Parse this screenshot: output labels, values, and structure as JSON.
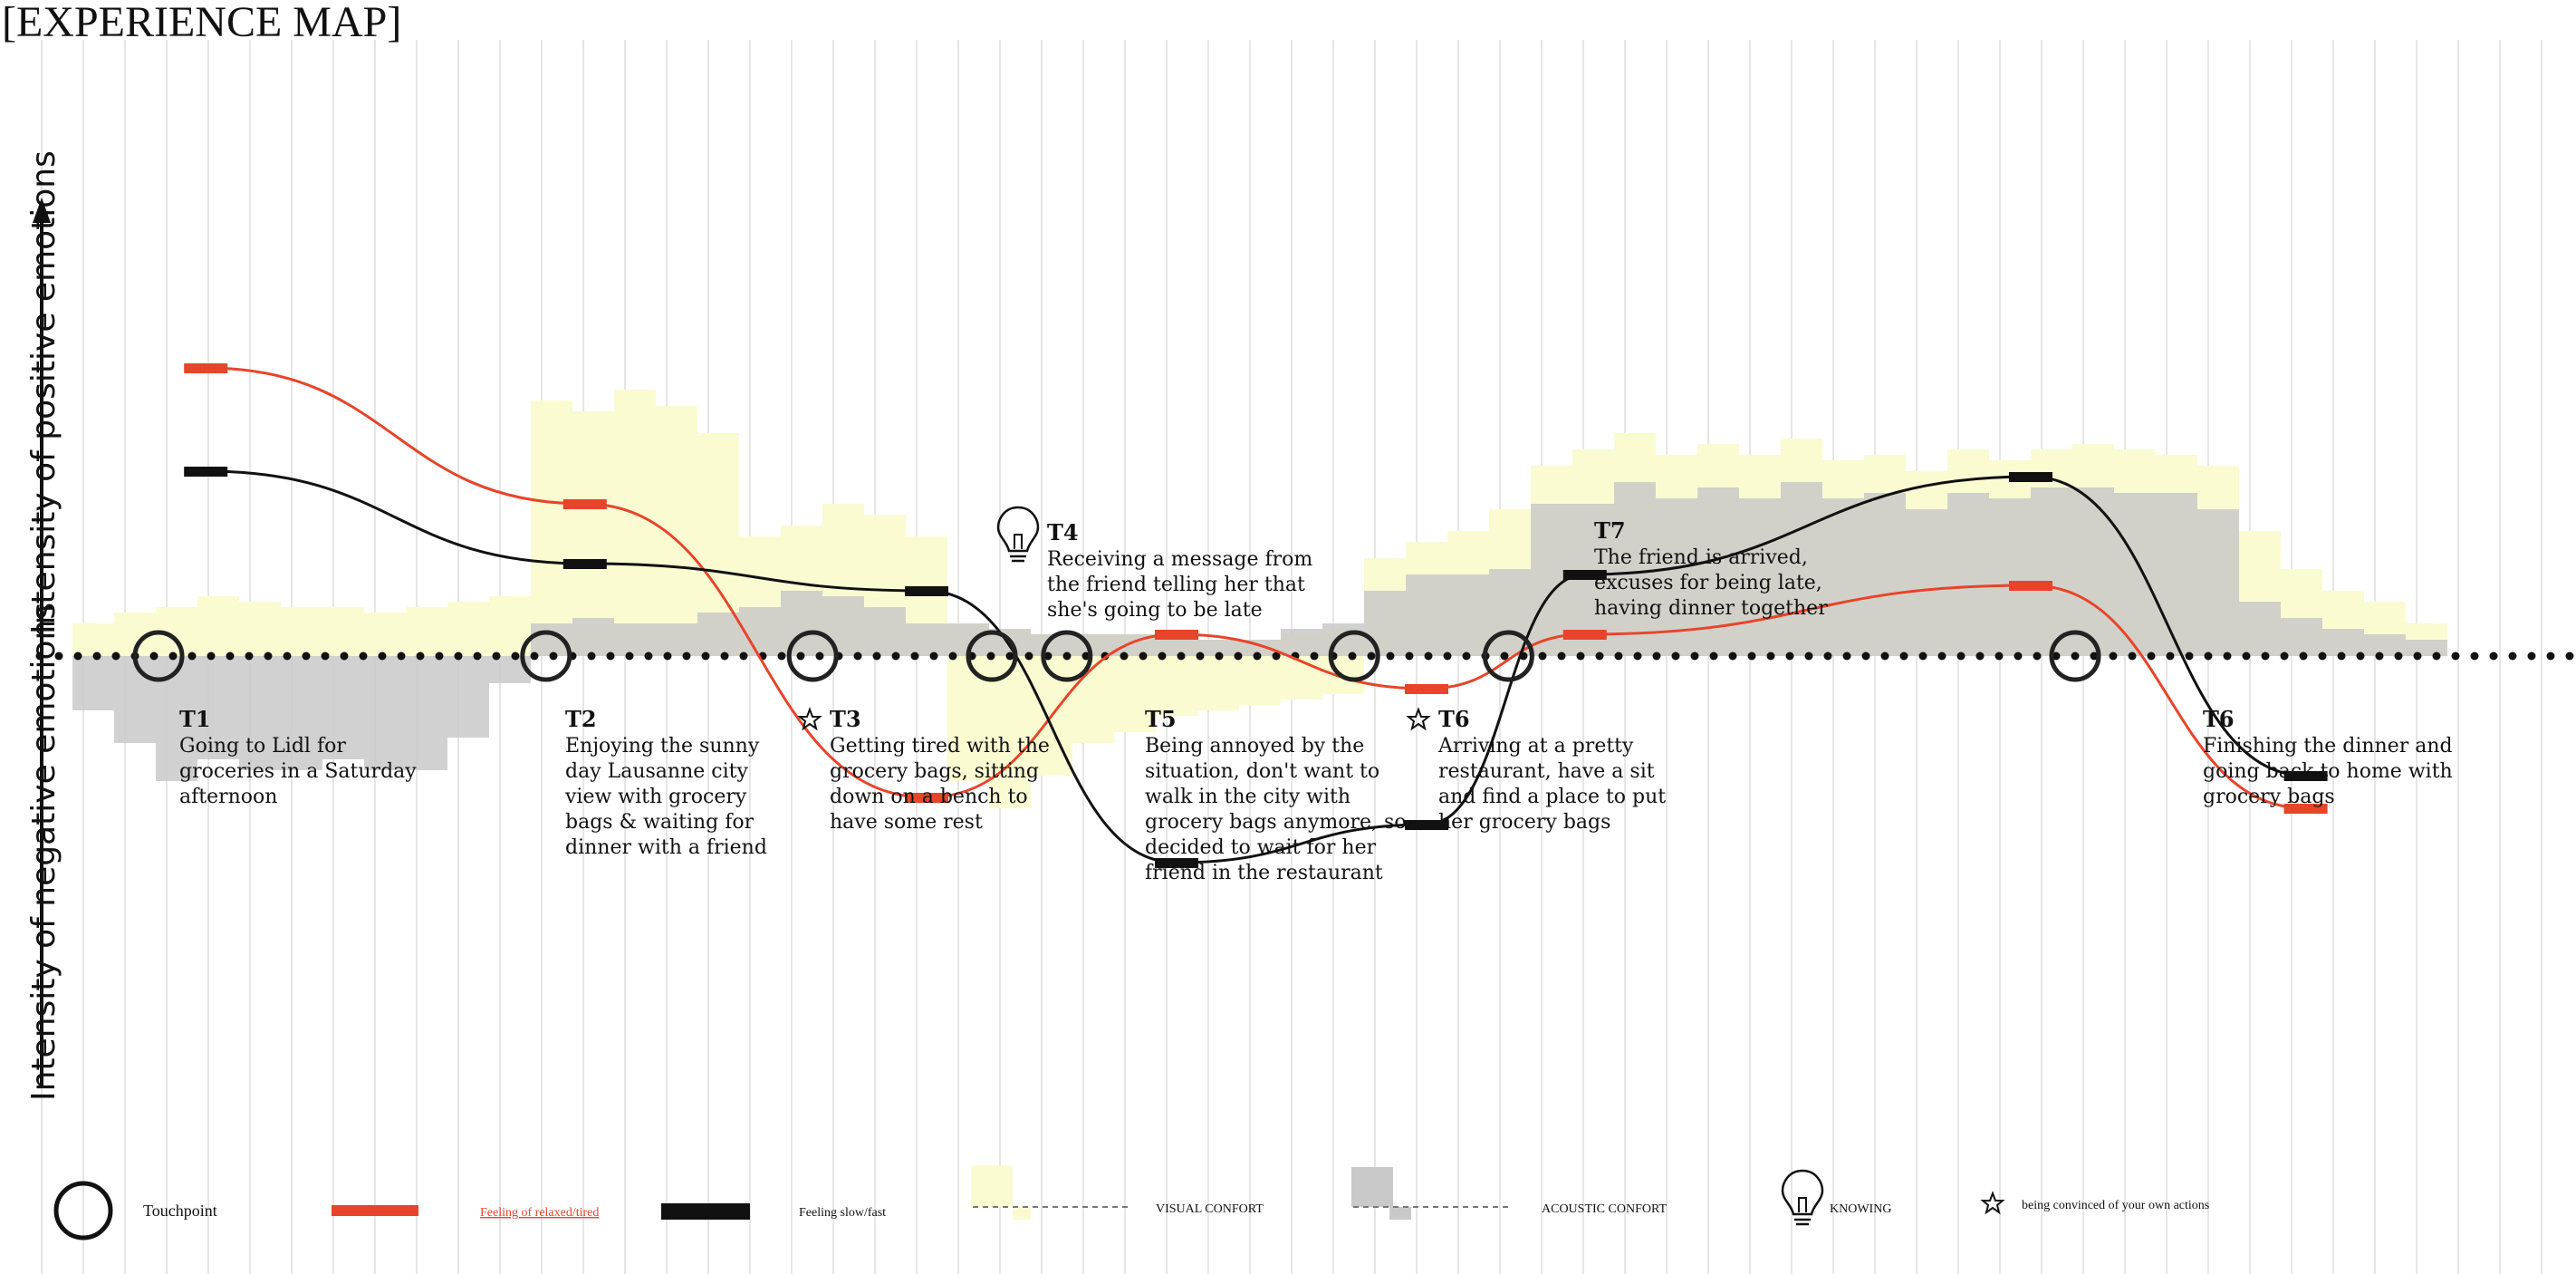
{
  "title": "[EXPERIENCE MAP]",
  "axis": {
    "positive_label": "Intensity of positive emotions",
    "negative_label": "Intensity of negative emotions"
  },
  "colors": {
    "relaxed_line": "#e8442a",
    "speed_line": "#111111",
    "visual_comfort": "#fbfbd2",
    "acoustic_comfort": "#c9c9c9",
    "grid": "#e6e6e6",
    "touchpoint_ring": "#222222"
  },
  "chart_data": {
    "type": "line",
    "description_note": "",
    "x_columns": 57,
    "ylim": [
      -6,
      6
    ],
    "visual_comfort": [
      0.6,
      0.8,
      0.9,
      1.1,
      1.0,
      0.9,
      0.9,
      0.8,
      0.9,
      1.0,
      1.1,
      4.7,
      4.5,
      4.9,
      4.6,
      4.1,
      2.2,
      2.4,
      2.8,
      2.6,
      2.2,
      0.6,
      0.5,
      0.4,
      0.4,
      0.4,
      0.3,
      0.3,
      0.3,
      0.4,
      0.5,
      1.8,
      2.1,
      2.3,
      2.7,
      3.5,
      3.8,
      4.1,
      3.7,
      3.9,
      3.7,
      4.0,
      3.6,
      3.7,
      3.4,
      3.8,
      3.6,
      3.8,
      3.9,
      3.8,
      3.7,
      3.5,
      2.3,
      1.6,
      1.2,
      1.0,
      0.6
    ],
    "visual_comfort_neg": [
      0,
      0,
      0,
      0,
      0,
      0,
      0,
      0,
      0,
      0,
      0,
      0,
      0,
      0,
      0,
      0,
      0,
      0,
      0,
      0,
      0,
      -2.3,
      -2.8,
      -2.2,
      -1.6,
      -1.4,
      -1.1,
      -1.0,
      -0.9,
      -0.8,
      -0.7,
      0,
      0,
      0,
      0,
      0,
      0,
      0,
      0,
      0,
      0,
      0,
      0,
      0,
      0,
      0,
      0,
      0,
      0,
      0,
      0,
      0,
      0,
      0,
      0,
      0,
      0
    ],
    "acoustic_comfort": [
      -1.0,
      -1.6,
      -2.3,
      -1.9,
      -2.1,
      -2.1,
      -1.9,
      -2.1,
      -2.1,
      -1.5,
      -0.5,
      0.6,
      0.7,
      0.6,
      0.6,
      0.8,
      0.9,
      1.2,
      1.1,
      0.9,
      0.6,
      0.6,
      0.5,
      0.4,
      0.4,
      0.4,
      0.3,
      0.3,
      0.3,
      0.5,
      0.6,
      1.2,
      1.5,
      1.5,
      1.6,
      2.8,
      2.8,
      3.2,
      2.9,
      3.1,
      2.9,
      3.2,
      2.9,
      3.0,
      2.7,
      3.0,
      2.9,
      3.1,
      3.1,
      3.0,
      3.0,
      2.7,
      1.0,
      0.7,
      0.5,
      0.4,
      0.3
    ],
    "touchpoints": [
      {
        "id": "T1",
        "x": 2.5,
        "text": [
          "Going to Lidl for",
          "groceries in a Saturday",
          "afternoon"
        ],
        "icon": ""
      },
      {
        "id": "T2",
        "x": 11.8,
        "text": [
          "Enjoying the sunny",
          "day Lausanne city",
          "view with grocery",
          "bags & waiting for",
          "dinner with a friend"
        ],
        "icon": ""
      },
      {
        "id": "T3",
        "x": 18.2,
        "text": [
          "Getting tired with the",
          "grocery bags, sitting",
          "down on a bench to",
          "have some rest"
        ],
        "icon": "star"
      },
      {
        "id": "T4",
        "x": 22.5,
        "text": [
          "Receiving a message from",
          "the friend telling her that",
          "she's going to be late"
        ],
        "icon": "bulb",
        "above": true
      },
      {
        "id": "T5",
        "x": 24.3,
        "text": [
          "Being annoyed by the",
          "situation, don't want to",
          "walk in the city with",
          "grocery bags anymore, so",
          "decided to wait for her",
          "friend in the restaurant"
        ],
        "icon": ""
      },
      {
        "id": "T6",
        "x": 31.2,
        "text": [
          "Arriving at a pretty",
          "restaurant, have a sit",
          "and find a place to put",
          "her grocery bags"
        ],
        "icon": "star"
      },
      {
        "id": "T7",
        "x": 35.0,
        "text": [
          "The friend is arrived,",
          "excuses for being late,",
          "having dinner together"
        ],
        "icon": "",
        "above": true
      },
      {
        "id": "T6",
        "x": 48.5,
        "text": [
          "Finishing the dinner and",
          "going back to home with",
          "grocery bags"
        ],
        "icon": ""
      }
    ],
    "series": [
      {
        "name": "Feeling of relaxed/tired",
        "key": "relaxed",
        "points": [
          [
            3.2,
            5.3
          ],
          [
            12.3,
            2.8
          ],
          [
            20.5,
            -2.6
          ],
          [
            26.5,
            0.4
          ],
          [
            32.5,
            -0.6
          ],
          [
            36.3,
            0.4
          ],
          [
            47.0,
            1.3
          ],
          [
            53.6,
            -2.8
          ]
        ]
      },
      {
        "name": "Feeling slow/fast",
        "key": "speed",
        "points": [
          [
            3.2,
            3.4
          ],
          [
            12.3,
            1.7
          ],
          [
            20.5,
            1.2
          ],
          [
            26.5,
            -3.8
          ],
          [
            32.5,
            -3.1
          ],
          [
            36.3,
            1.5
          ],
          [
            47.0,
            3.3
          ],
          [
            53.6,
            -2.2
          ]
        ]
      }
    ]
  },
  "legend": {
    "touchpoint": "Touchpoint",
    "relaxed": "Feeling of relaxed/tired",
    "speed": "Feeling slow/fast",
    "visual": "VISUAL CONFORT",
    "acoustic": "ACOUSTIC CONFORT",
    "knowing": "KNOWING",
    "convinced": "being convinced of your own actions"
  }
}
